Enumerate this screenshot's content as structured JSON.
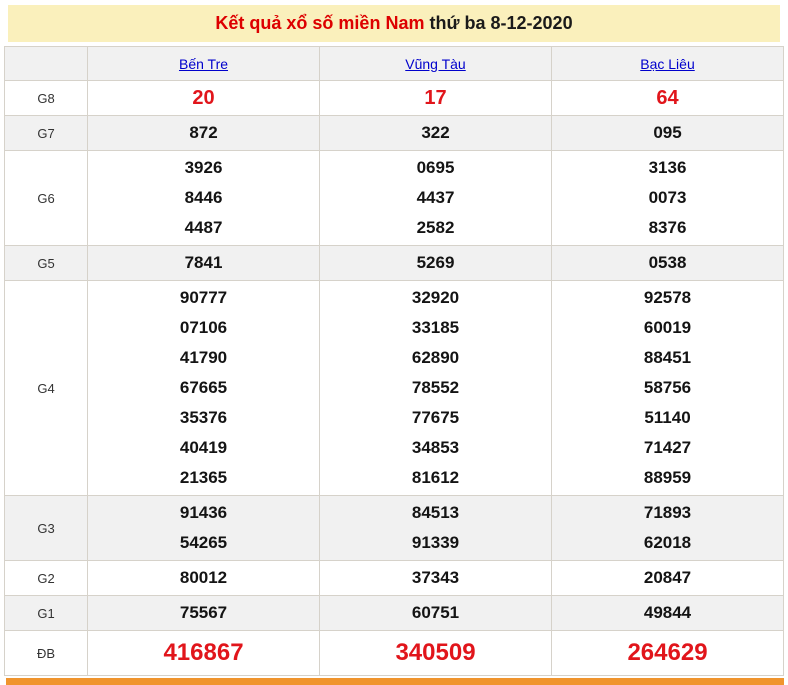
{
  "title": {
    "main": "Kết quả xổ số miền Nam",
    "date": "thứ ba 8-12-2020"
  },
  "table": {
    "provinces": [
      "Bến Tre",
      "Vũng Tàu",
      "Bạc Liêu"
    ],
    "rows": [
      {
        "label": "G8",
        "style": "red-medium",
        "values": [
          [
            "20"
          ],
          [
            "17"
          ],
          [
            "64"
          ]
        ]
      },
      {
        "label": "G7",
        "values": [
          [
            "872"
          ],
          [
            "322"
          ],
          [
            "095"
          ]
        ]
      },
      {
        "label": "G6",
        "values": [
          [
            "3926",
            "8446",
            "4487"
          ],
          [
            "0695",
            "4437",
            "2582"
          ],
          [
            "3136",
            "0073",
            "8376"
          ]
        ]
      },
      {
        "label": "G5",
        "values": [
          [
            "7841"
          ],
          [
            "5269"
          ],
          [
            "0538"
          ]
        ]
      },
      {
        "label": "G4",
        "values": [
          [
            "90777",
            "07106",
            "41790",
            "67665",
            "35376",
            "40419",
            "21365"
          ],
          [
            "32920",
            "33185",
            "62890",
            "78552",
            "77675",
            "34853",
            "81612"
          ],
          [
            "92578",
            "60019",
            "88451",
            "58756",
            "51140",
            "71427",
            "88959"
          ]
        ]
      },
      {
        "label": "G3",
        "values": [
          [
            "91436",
            "54265"
          ],
          [
            "84513",
            "91339"
          ],
          [
            "71893",
            "62018"
          ]
        ]
      },
      {
        "label": "G2",
        "values": [
          [
            "80012"
          ],
          [
            "37343"
          ],
          [
            "20847"
          ]
        ]
      },
      {
        "label": "G1",
        "values": [
          [
            "75567"
          ],
          [
            "60751"
          ],
          [
            "49844"
          ]
        ]
      },
      {
        "label": "ĐB",
        "style": "red-large",
        "values": [
          [
            "416867"
          ],
          [
            "340509"
          ],
          [
            "264629"
          ]
        ]
      }
    ]
  },
  "colors": {
    "title_background": "#FAF0BC",
    "title_red": "#DD0000",
    "number_red": "#E1151B",
    "link_blue": "#0000CC",
    "alt_row_gray": "#F1F1F1",
    "table_border": "#D6D2CA",
    "bottom_bar_orange": "#F0942D"
  }
}
